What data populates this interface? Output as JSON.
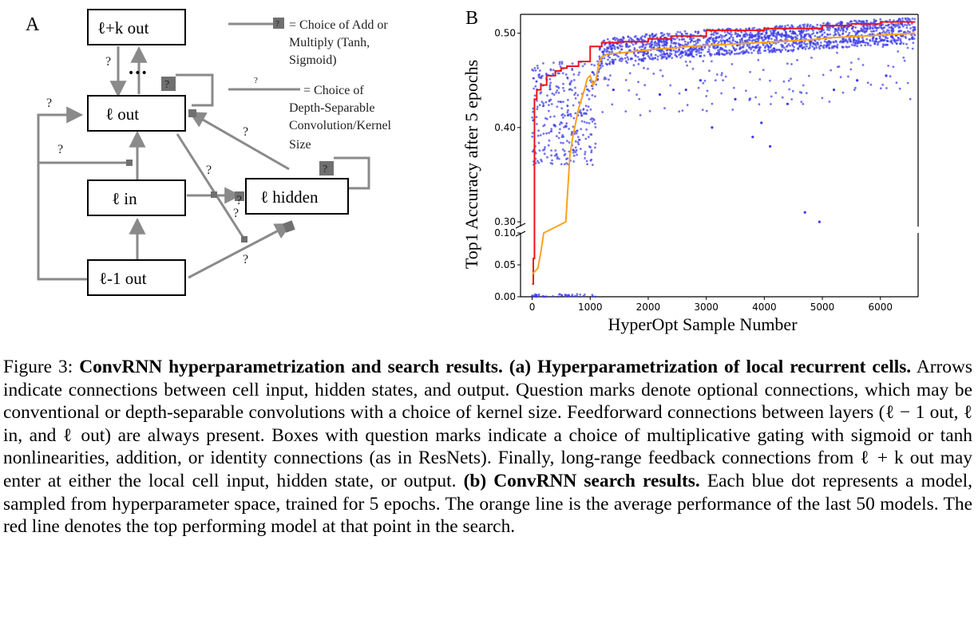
{
  "panel_a": {
    "label": "A",
    "boxes": {
      "lk_out": "ℓ+k out",
      "l_out": "ℓ out",
      "l_in": "ℓ in",
      "l_hidden": "ℓ hidden",
      "lm1_out": "ℓ-1 out"
    },
    "gate_glyph": "?",
    "dots": "•••",
    "legend": {
      "gate_lines": [
        "= Choice of Add or",
        "Multiply (Tanh,",
        "Sigmoid)"
      ],
      "conv_lines": [
        "= Choice of",
        "Depth-Separable",
        "Convolution/Kernel",
        "Size"
      ]
    }
  },
  "panel_b": {
    "label": "B",
    "ylabel": "Top1 Accuracy after 5 epochs",
    "xlabel": "HyperOpt Sample Number",
    "xticks": [
      "0",
      "1000",
      "2000",
      "3000",
      "4000",
      "5000",
      "6000"
    ],
    "yticks_upper": [
      "0.30",
      "0.40",
      "0.50"
    ],
    "yticks_lower": [
      "0.00",
      "0.05",
      "0.10"
    ]
  },
  "chart_data": {
    "type": "scatter",
    "xlabel": "HyperOpt Sample Number",
    "ylabel": "Top1 Accuracy after 5 epochs",
    "xlim": [
      -200,
      6650
    ],
    "ylim_upper": [
      0.295,
      0.52
    ],
    "ylim_lower": [
      0.0,
      0.1
    ],
    "broken_axis": true,
    "colors": {
      "scatter": "#3a3ae8",
      "average": "#ffa21a",
      "best": "#e8151a"
    },
    "scatter_outliers": [
      {
        "x": 3100,
        "y": 0.4
      },
      {
        "x": 3800,
        "y": 0.39
      },
      {
        "x": 3950,
        "y": 0.405
      },
      {
        "x": 4100,
        "y": 0.38
      },
      {
        "x": 4700,
        "y": 0.31
      },
      {
        "x": 4950,
        "y": 0.3
      },
      {
        "x": 2200,
        "y": 0.435
      },
      {
        "x": 2650,
        "y": 0.44
      },
      {
        "x": 3500,
        "y": 0.43
      },
      {
        "x": 4400,
        "y": 0.425
      },
      {
        "x": 5200,
        "y": 0.44
      },
      {
        "x": 5600,
        "y": 0.45
      },
      {
        "x": 6100,
        "y": 0.455
      },
      {
        "x": 1400,
        "y": 0.44
      },
      {
        "x": 2900,
        "y": 0.45
      }
    ],
    "series": [
      {
        "name": "",
        "x": [
          0,
          50,
          100,
          150,
          200,
          580,
          600,
          650,
          700,
          800,
          900,
          950,
          1000,
          1050,
          1100,
          1150,
          1200,
          1300,
          1500,
          1800,
          2100,
          2400,
          2700,
          3000,
          3300,
          3600,
          3900,
          4200,
          4500,
          4800,
          5100,
          5400,
          5700,
          6000,
          6300,
          6600
        ],
        "y": [
          0.035,
          0.04,
          0.045,
          0.07,
          0.1,
          0.3,
          0.32,
          0.37,
          0.39,
          0.42,
          0.44,
          0.452,
          0.455,
          0.445,
          0.45,
          0.468,
          0.475,
          0.478,
          0.479,
          0.481,
          0.483,
          0.484,
          0.486,
          0.487,
          0.488,
          0.489,
          0.49,
          0.491,
          0.492,
          0.493,
          0.495,
          0.496,
          0.497,
          0.498,
          0.499,
          0.5
        ]
      },
      {
        "name": "",
        "x": [
          0,
          20,
          40,
          80,
          150,
          250,
          400,
          500,
          600,
          800,
          1000,
          1200,
          1500,
          2000,
          2400,
          3000,
          4000,
          5000,
          5500,
          6000,
          6600
        ],
        "y": [
          0.02,
          0.06,
          0.43,
          0.44,
          0.445,
          0.455,
          0.46,
          0.463,
          0.465,
          0.47,
          0.486,
          0.49,
          0.491,
          0.494,
          0.497,
          0.503,
          0.505,
          0.508,
          0.51,
          0.512,
          0.512
        ]
      }
    ]
  },
  "caption": {
    "fig_label": "Figure 3:",
    "title_bold": "ConvRNN hyperparametrization and search results.",
    "part_a_bold": "(a) Hyperparametrization of local recurrent cells.",
    "part_a_text": "Arrows indicate connections between cell input, hidden states, and output. Question marks denote optional connections, which may be conventional or depth-separable convolutions with a choice of kernel size. Feedforward connections between layers (ℓ − 1 out, ℓ in, and ℓ out) are always present. Boxes with question marks indicate a choice of multiplicative gating with sigmoid or tanh nonlinearities, addition, or identity connections (as in ResNets). Finally, long-range feedback connections from ℓ + k out may enter at either the local cell input, hidden state, or output.",
    "part_b_bold": "(b) ConvRNN search results.",
    "part_b_text": "Each blue dot represents a model, sampled from hyperparameter space, trained for 5 epochs. The orange line is the average performance of the last 50 models. The red line denotes the top performing model at that point in the search."
  }
}
